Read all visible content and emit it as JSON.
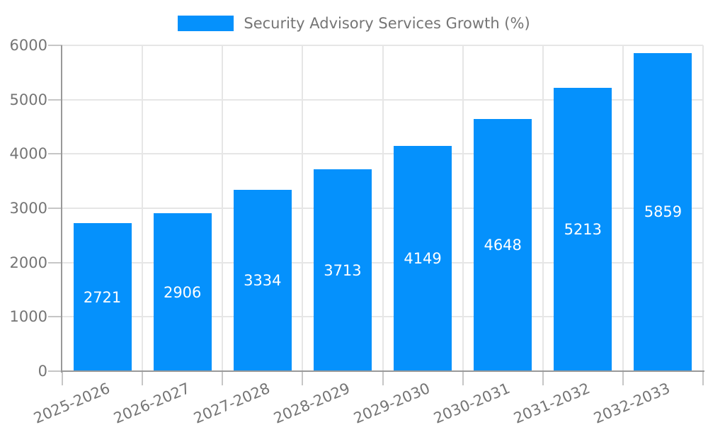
{
  "chart_data": {
    "type": "bar",
    "title": "",
    "legend": "Security Advisory Services Growth (%)",
    "legend_position": "top-center",
    "categories": [
      "2025-2026",
      "2026-2027",
      "2027-2028",
      "2028-2029",
      "2029-2030",
      "2030-2031",
      "2031-2032",
      "2032-2033"
    ],
    "values": [
      2721,
      2906,
      3334,
      3713,
      4149,
      4648,
      5213,
      5859
    ],
    "bar_value_labels": [
      "2721",
      "2906",
      "3334",
      "3713",
      "4149",
      "4648",
      "5213",
      "5859"
    ],
    "xlabel": "",
    "ylabel": "",
    "ylim": [
      0,
      6000
    ],
    "yticks": [
      0,
      1000,
      2000,
      3000,
      4000,
      5000,
      6000
    ],
    "ytick_labels": [
      "0",
      "1000",
      "2000",
      "3000",
      "4000",
      "5000",
      "6000"
    ],
    "grid": true,
    "colors": {
      "bar": "#0591fc",
      "bar_label": "#ffffff",
      "tick_text": "#757575",
      "legend_text": "#757575",
      "gridline": "#e6e6e6",
      "tick_mark": "#c6c6c6",
      "axis_line": "#999999",
      "background": "#ffffff"
    }
  }
}
